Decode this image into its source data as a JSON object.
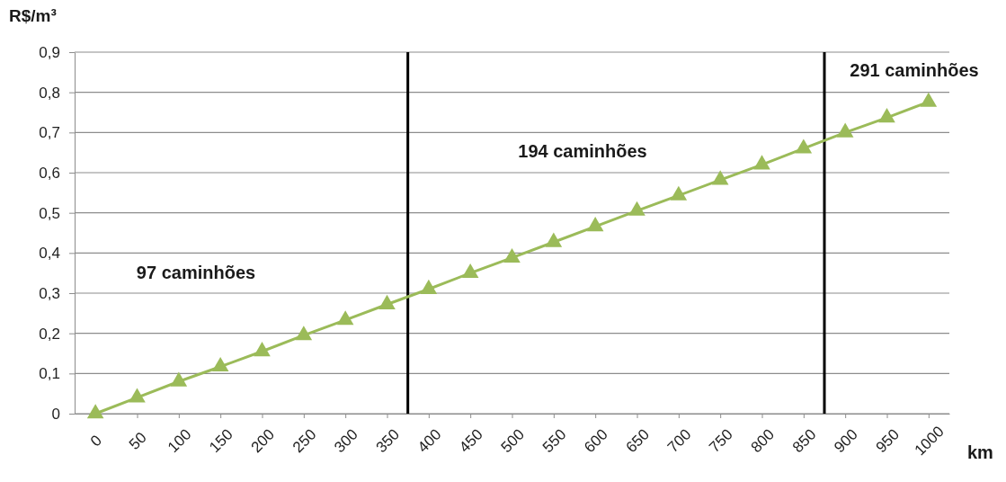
{
  "chart_data": {
    "type": "line",
    "xlabel": "km",
    "ylabel": "R$/m³",
    "x": [
      0,
      50,
      100,
      150,
      200,
      250,
      300,
      350,
      400,
      450,
      500,
      550,
      600,
      650,
      700,
      750,
      800,
      850,
      900,
      950,
      1000
    ],
    "series": [
      {
        "color": "#9bbb59",
        "values": [
          0,
          0.04,
          0.08,
          0.117,
          0.155,
          0.195,
          0.233,
          0.272,
          0.31,
          0.35,
          0.388,
          0.427,
          0.466,
          0.505,
          0.543,
          0.582,
          0.62,
          0.66,
          0.7,
          0.737,
          0.776
        ]
      }
    ],
    "xlim": [
      -25,
      1025
    ],
    "xticks": [
      0,
      50,
      100,
      150,
      200,
      250,
      300,
      350,
      400,
      450,
      500,
      550,
      600,
      650,
      700,
      750,
      800,
      850,
      900,
      950,
      1000
    ],
    "ylim": [
      0,
      0.9
    ],
    "yticks": [
      {
        "value": 0,
        "label": "0"
      },
      {
        "value": 0.1,
        "label": "0,1"
      },
      {
        "value": 0.2,
        "label": "0,2"
      },
      {
        "value": 0.3,
        "label": "0,3"
      },
      {
        "value": 0.4,
        "label": "0,4"
      },
      {
        "value": 0.5,
        "label": "0,5"
      },
      {
        "value": 0.6,
        "label": "0,6"
      },
      {
        "value": 0.7,
        "label": "0,7"
      },
      {
        "value": 0.8,
        "label": "0,8"
      },
      {
        "value": 0.9,
        "label": "0,9"
      }
    ],
    "grid": "y",
    "marker": "triangle",
    "line_style": "solid",
    "ref_lines": [
      {
        "axis": "x",
        "value": 375,
        "color": "#000000"
      },
      {
        "axis": "x",
        "value": 875,
        "color": "#000000"
      }
    ],
    "annotations": [
      "97 caminhões",
      "194 caminhões",
      "291 caminhões"
    ]
  }
}
